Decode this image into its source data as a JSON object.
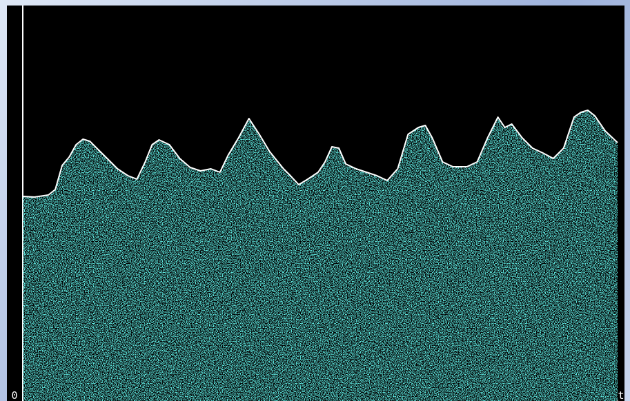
{
  "chart_data": {
    "type": "area",
    "color": "#5fe9e1",
    "line_color": "#ffffff",
    "xlim": [
      0,
      860
    ],
    "ylim": [
      0,
      574
    ],
    "xticks": [
      0,
      {
        "value": 860,
        "label": "t"
      }
    ],
    "x": [
      0,
      17,
      37,
      47,
      57,
      67,
      77,
      87,
      97,
      107,
      122,
      137,
      152,
      165,
      177,
      187,
      197,
      212,
      227,
      242,
      257,
      272,
      285,
      297,
      312,
      327,
      342,
      357,
      377,
      387,
      399,
      412,
      427,
      437,
      447,
      457,
      467,
      482,
      497,
      512,
      527,
      542,
      557,
      572,
      582,
      592,
      607,
      622,
      642,
      657,
      672,
      687,
      697,
      707,
      722,
      737,
      752,
      767,
      782,
      797,
      807,
      817,
      827,
      842,
      860
    ],
    "values": [
      297,
      296,
      299,
      307,
      342,
      354,
      372,
      380,
      377,
      367,
      352,
      337,
      327,
      322,
      347,
      372,
      379,
      372,
      352,
      339,
      334,
      337,
      332,
      357,
      382,
      410,
      387,
      362,
      337,
      327,
      314,
      322,
      332,
      347,
      369,
      367,
      344,
      337,
      332,
      327,
      320,
      337,
      387,
      397,
      400,
      382,
      347,
      340,
      340,
      347,
      382,
      412,
      397,
      402,
      382,
      367,
      360,
      352,
      367,
      412,
      419,
      422,
      414,
      392,
      375
    ]
  }
}
